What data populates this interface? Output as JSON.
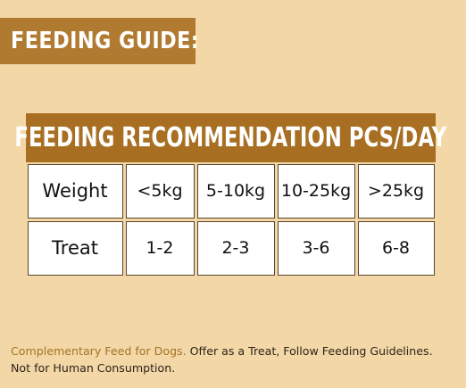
{
  "guide_title": "FEEDING GUIDE:",
  "table": {
    "title": "FEEDING RECOMMENDATION PCS/DAY",
    "rows": [
      {
        "label": "Weight",
        "cells": [
          "<5kg",
          "5-10kg",
          "10-25kg",
          ">25kg"
        ]
      },
      {
        "label": "Treat",
        "cells": [
          "1-2",
          "2-3",
          "3-6",
          "6-8"
        ]
      }
    ]
  },
  "footer": {
    "highlight": "Complementary Feed for Dogs.",
    "line1_rest": " Offer as a Treat, Follow Feeding Guidelines.",
    "line2": "Not for Human Consumption."
  },
  "colors": {
    "background": "#f3d7a6",
    "banner": "#b07b30",
    "table_header": "#a86f23",
    "accent_text": "#a57426"
  }
}
